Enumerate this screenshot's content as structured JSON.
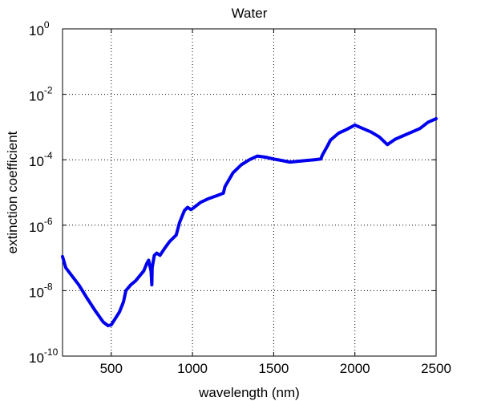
{
  "chart_data": {
    "type": "line",
    "title": "Water",
    "xlabel": "wavelength (nm)",
    "ylabel": "extinction coefficient",
    "xlim": [
      200,
      2500
    ],
    "ylim": [
      1e-10,
      1
    ],
    "yscale": "log",
    "grid": true,
    "x_ticks": [
      500,
      1000,
      1500,
      2000,
      2500
    ],
    "x_tick_labels": [
      "500",
      "1000",
      "1500",
      "2000",
      "2500"
    ],
    "y_ticks": [
      1e-10,
      1e-08,
      1e-06,
      0.0001,
      0.01,
      1
    ],
    "y_tick_labels": [
      {
        "base": "10",
        "exp": "-10"
      },
      {
        "base": "10",
        "exp": "-8"
      },
      {
        "base": "10",
        "exp": "-6"
      },
      {
        "base": "10",
        "exp": "-4"
      },
      {
        "base": "10",
        "exp": "-2"
      },
      {
        "base": "10",
        "exp": "0"
      }
    ],
    "series": [
      {
        "color": "#0000ee",
        "points": [
          [
            200,
            1.1e-07
          ],
          [
            220,
            5e-08
          ],
          [
            250,
            3.2e-08
          ],
          [
            300,
            1.5e-08
          ],
          [
            350,
            6e-09
          ],
          [
            400,
            2.5e-09
          ],
          [
            450,
            1.1e-09
          ],
          [
            480,
            8.5e-10
          ],
          [
            500,
            9e-10
          ],
          [
            550,
            2.2e-09
          ],
          [
            575,
            4.5e-09
          ],
          [
            590,
            1e-08
          ],
          [
            620,
            1.5e-08
          ],
          [
            650,
            2e-08
          ],
          [
            700,
            4e-08
          ],
          [
            720,
            7e-08
          ],
          [
            730,
            8.5e-08
          ],
          [
            745,
            4e-08
          ],
          [
            750,
            1.5e-08
          ],
          [
            752,
            5e-08
          ],
          [
            765,
            1.2e-07
          ],
          [
            780,
            1.4e-07
          ],
          [
            800,
            1.2e-07
          ],
          [
            830,
            2e-07
          ],
          [
            860,
            3.2e-07
          ],
          [
            900,
            5e-07
          ],
          [
            920,
            1.2e-06
          ],
          [
            950,
            2.8e-06
          ],
          [
            970,
            3.5e-06
          ],
          [
            990,
            3e-06
          ],
          [
            1000,
            3.2e-06
          ],
          [
            1050,
            5e-06
          ],
          [
            1100,
            6.5e-06
          ],
          [
            1150,
            8e-06
          ],
          [
            1190,
            9.5e-06
          ],
          [
            1200,
            1.5e-05
          ],
          [
            1250,
            4e-05
          ],
          [
            1300,
            7e-05
          ],
          [
            1350,
            0.0001
          ],
          [
            1400,
            0.00013
          ],
          [
            1450,
            0.00012
          ],
          [
            1500,
            0.000105
          ],
          [
            1550,
            9.5e-05
          ],
          [
            1600,
            8.5e-05
          ],
          [
            1650,
            9e-05
          ],
          [
            1700,
            9.5e-05
          ],
          [
            1750,
            0.0001
          ],
          [
            1790,
            0.000105
          ],
          [
            1800,
            0.00014
          ],
          [
            1830,
            0.00026
          ],
          [
            1850,
            0.0004
          ],
          [
            1900,
            0.00065
          ],
          [
            1950,
            0.00085
          ],
          [
            2000,
            0.00115
          ],
          [
            2050,
            0.0009
          ],
          [
            2100,
            0.0007
          ],
          [
            2150,
            0.0005
          ],
          [
            2200,
            0.00029
          ],
          [
            2250,
            0.00043
          ],
          [
            2300,
            0.00055
          ],
          [
            2350,
            0.0007
          ],
          [
            2400,
            0.0009
          ],
          [
            2450,
            0.0014
          ],
          [
            2500,
            0.0018
          ]
        ]
      }
    ]
  }
}
